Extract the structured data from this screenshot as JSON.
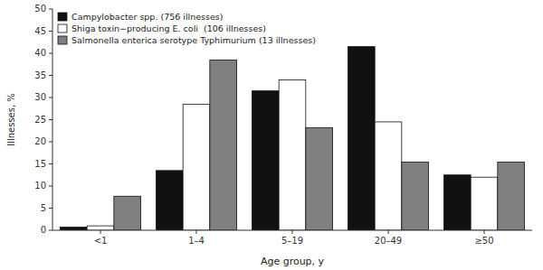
{
  "chart_data": {
    "type": "bar",
    "categories": [
      "<1",
      "1–4",
      "5–19",
      "20–49",
      "≥50"
    ],
    "series": [
      {
        "name": "Campylobacter spp. (756 illnesses)",
        "color": "#111111",
        "values": [
          0.7,
          13.5,
          31.5,
          41.5,
          12.5
        ]
      },
      {
        "name": "Shiga toxin−producing E. coli  (106 illnesses)",
        "color": "#ffffff",
        "values": [
          1.0,
          28.5,
          34.0,
          24.5,
          12.0
        ]
      },
      {
        "name": "Salmonella enterica serotype Typhimurium (13 illnesses)",
        "color": "#808080",
        "values": [
          7.7,
          38.5,
          23.2,
          15.4,
          15.4
        ]
      }
    ],
    "xlabel": "Age group, y",
    "ylabel": "Illnesses, %",
    "ylim": [
      0,
      50
    ],
    "yticks": [
      0,
      5,
      10,
      15,
      20,
      25,
      30,
      35,
      40,
      45,
      50
    ],
    "grid": false,
    "legend": "upper left"
  }
}
